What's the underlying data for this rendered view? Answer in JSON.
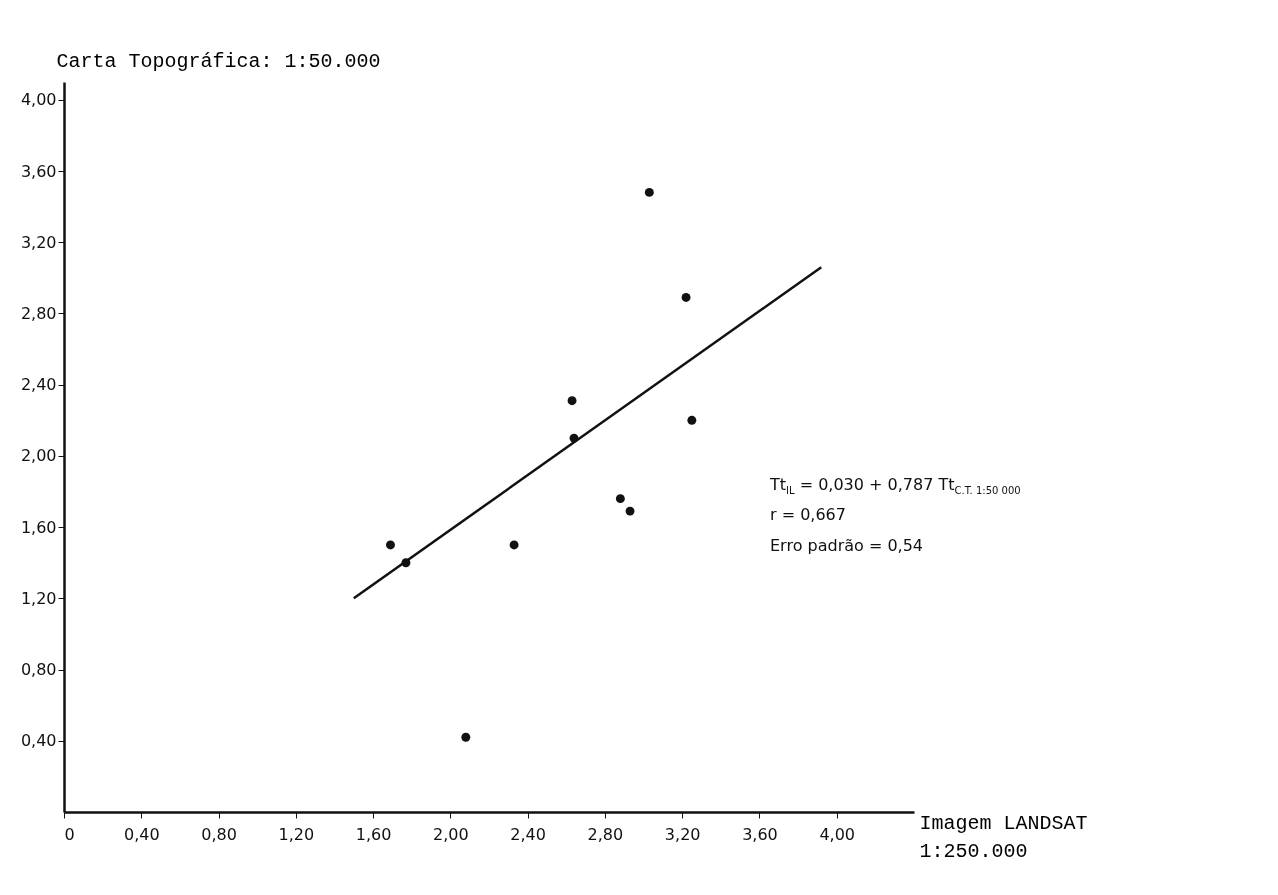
{
  "chart_data": {
    "type": "scatter",
    "xlabel": "Imagem LANDSAT 1:250.000",
    "ylabel": "Carta Topográfica: 1:50.000",
    "xlim": [
      0,
      4.4
    ],
    "ylim": [
      0,
      4.1
    ],
    "xticks": [
      0,
      {
        "value": 0.4,
        "label": "0,40"
      },
      {
        "value": 0.8,
        "label": "0,80"
      },
      {
        "value": 1.2,
        "label": "1,20"
      },
      {
        "value": 1.6,
        "label": "1,60"
      },
      {
        "value": 2.0,
        "label": "2,00"
      },
      {
        "value": 2.4,
        "label": "2,40"
      },
      {
        "value": 2.8,
        "label": "2,80"
      },
      {
        "value": 3.2,
        "label": "3,20"
      },
      {
        "value": 3.6,
        "label": "3,60"
      },
      {
        "value": 4.0,
        "label": "4,00"
      }
    ],
    "yticks": [
      {
        "value": 0.4,
        "label": "0,40"
      },
      {
        "value": 0.8,
        "label": "0,80"
      },
      {
        "value": 1.2,
        "label": "1,20"
      },
      {
        "value": 1.6,
        "label": "1,60"
      },
      {
        "value": 2.0,
        "label": "2,00"
      },
      {
        "value": 2.4,
        "label": "2,40"
      },
      {
        "value": 2.8,
        "label": "2,80"
      },
      {
        "value": 3.2,
        "label": "3,20"
      },
      {
        "value": 3.6,
        "label": "3,60"
      },
      {
        "value": 4.0,
        "label": "4,00"
      }
    ],
    "grid": false,
    "series": [
      {
        "marker": "circle",
        "color": "#111111",
        "x": [
          3.03,
          3.22,
          2.63,
          3.25,
          2.64,
          2.88,
          2.93,
          1.69,
          1.77,
          2.33,
          2.08
        ],
        "values": [
          3.48,
          2.89,
          2.31,
          2.2,
          2.1,
          1.76,
          1.69,
          1.5,
          1.4,
          1.5,
          0.42
        ]
      },
      {
        "type": "line",
        "color": "#111111",
        "x": [
          1.5,
          3.92
        ],
        "values": [
          1.2,
          3.06
        ]
      }
    ],
    "annotations": [
      "Tt$_{IL}$ = 0,030 + 0,787 Tt$_{C.T. 1:50 000}$",
      "r = 0,667",
      "Erro padrão = 0,54"
    ]
  }
}
